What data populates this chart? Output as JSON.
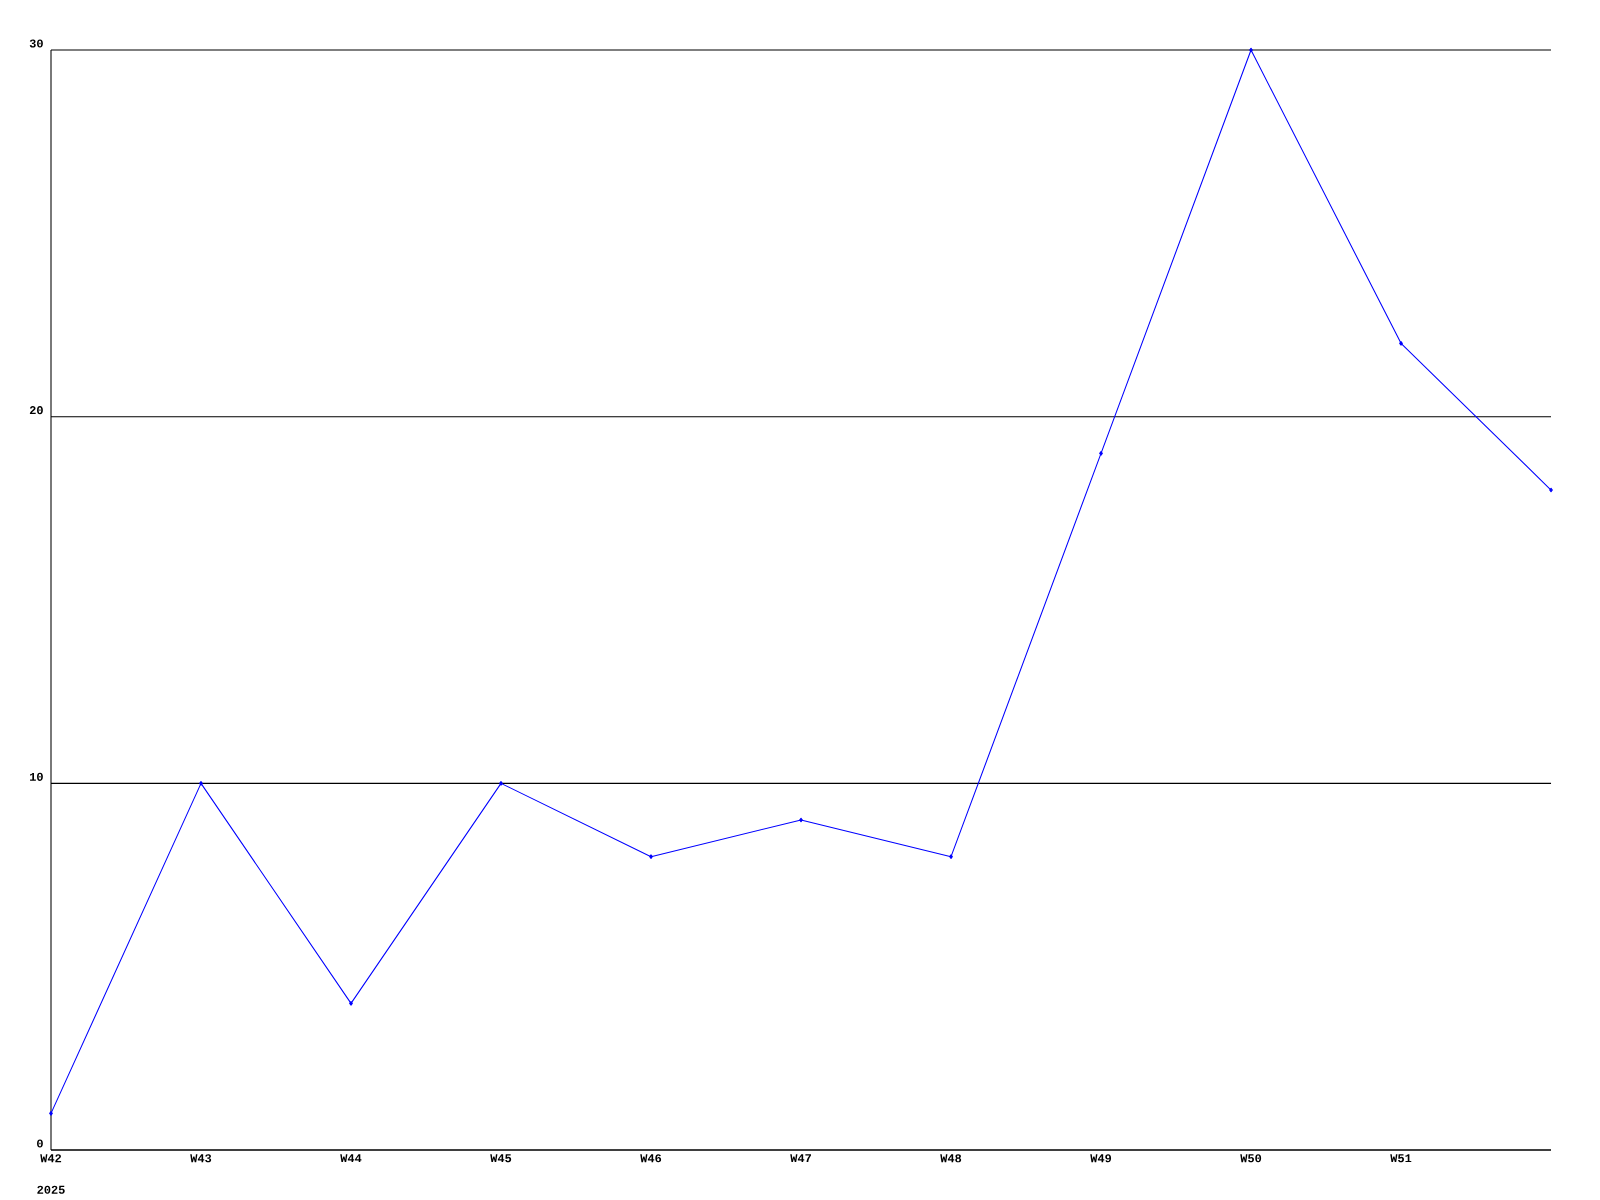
{
  "chart_data": {
    "type": "line",
    "categories": [
      "W42",
      "W43",
      "W44",
      "W45",
      "W46",
      "W47",
      "W48",
      "W49",
      "W50",
      "W51",
      null
    ],
    "values": [
      1,
      10,
      4,
      10,
      8,
      9,
      8,
      19,
      30,
      22,
      18
    ],
    "color": "#0000ff",
    "marker": "diamond",
    "ylim": [
      0,
      30
    ],
    "yticks": [
      0,
      10,
      20,
      30
    ],
    "grid": "y",
    "annotations": [
      "2025"
    ]
  }
}
